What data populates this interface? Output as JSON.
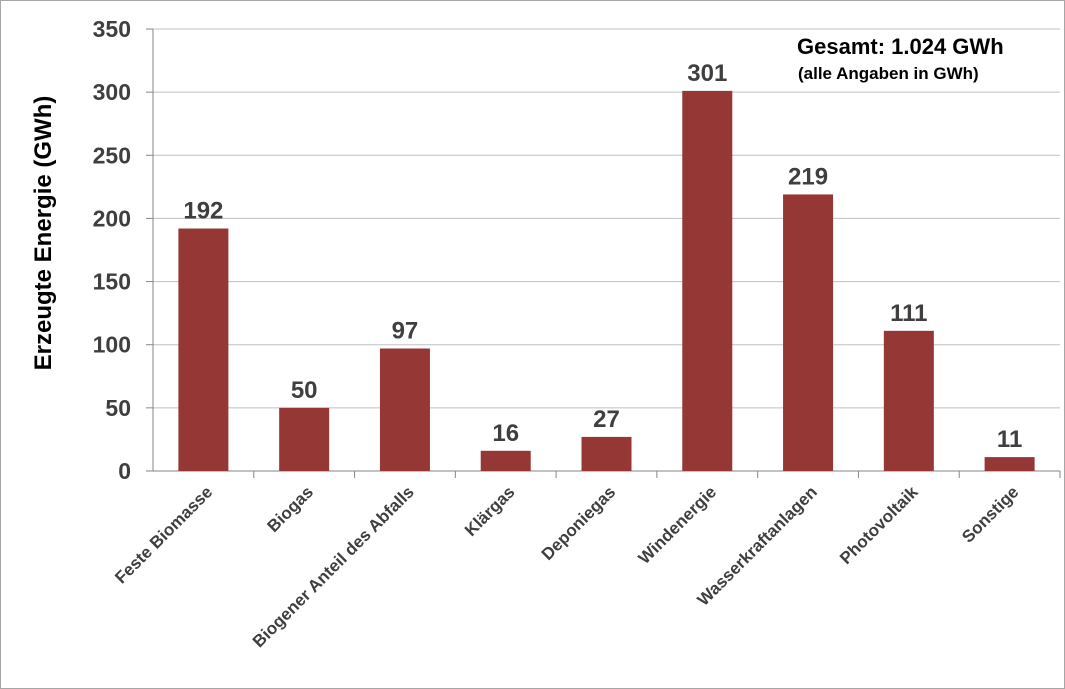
{
  "chart_data": {
    "type": "bar",
    "categories": [
      "Feste Biomasse",
      "Biogas",
      "Biogener Anteil des Abfalls",
      "Klärgas",
      "Deponiegas",
      "Windenergie",
      "Wasserkraftanlagen",
      "Photovoltaik",
      "Sonstige"
    ],
    "values": [
      192,
      50,
      97,
      16,
      27,
      301,
      219,
      111,
      11
    ],
    "ylabel": "Erzeugte Energie (GWh)",
    "ylim": [
      0,
      350
    ],
    "yticks": [
      0,
      50,
      100,
      150,
      200,
      250,
      300,
      350
    ],
    "grid": true,
    "data_labels": true,
    "bar_color": "#953735",
    "annotation": {
      "total": "Gesamt: 1.024 GWh",
      "note": "(alle Angaben in GWh)"
    }
  }
}
